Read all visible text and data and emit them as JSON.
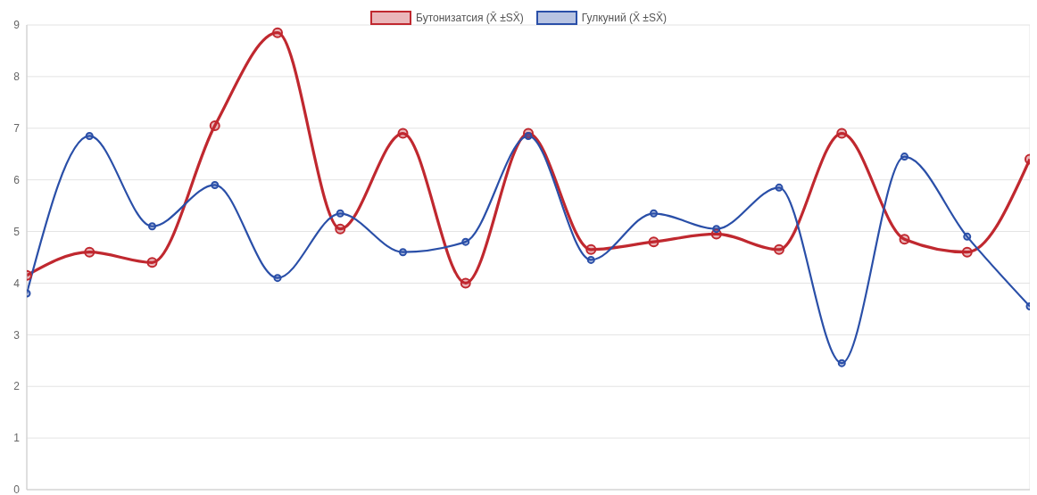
{
  "chart_data": {
    "type": "line",
    "categories": [
      null,
      null,
      null,
      null,
      null,
      null,
      null,
      null,
      null,
      null,
      null,
      null,
      null,
      null,
      null,
      null,
      null
    ],
    "series": [
      {
        "name": "Бутонизатсия (X̄ ±SX̄)",
        "color": "#c0282f",
        "values": [
          4.15,
          4.6,
          4.4,
          7.05,
          8.85,
          5.05,
          6.9,
          4.0,
          6.9,
          4.65,
          4.8,
          4.95,
          4.65,
          6.9,
          4.85,
          4.6,
          6.4
        ]
      },
      {
        "name": "Гулкуний (X̄ ±SX̄)",
        "color": "#2a4fa8",
        "values": [
          3.8,
          6.85,
          5.1,
          5.9,
          4.1,
          5.35,
          4.6,
          4.8,
          6.85,
          4.45,
          5.35,
          5.05,
          5.85,
          2.45,
          6.45,
          4.9,
          3.55
        ]
      }
    ],
    "ylim": [
      0,
      9
    ],
    "yticks": [
      0,
      1,
      2,
      3,
      4,
      5,
      6,
      7,
      8,
      9
    ],
    "grid": true,
    "legend": "top",
    "marker": "circle",
    "line_style": "solid",
    "tick_labels": "y"
  }
}
